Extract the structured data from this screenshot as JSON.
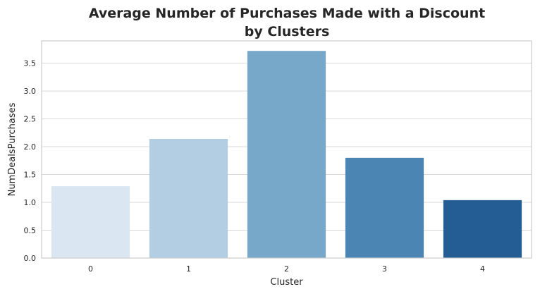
{
  "chart_data": {
    "type": "bar",
    "title_lines": [
      "Average Number of Purchases Made with a Discount",
      "by Clusters"
    ],
    "xlabel": "Cluster",
    "ylabel": "NumDealsPurchases",
    "categories": [
      "0",
      "1",
      "2",
      "3",
      "4"
    ],
    "values": [
      1.29,
      2.14,
      3.72,
      1.8,
      1.04
    ],
    "colors": [
      "#dae6f1",
      "#b3cde2",
      "#78a8c9",
      "#4a85b3",
      "#235d94"
    ],
    "ylim": [
      0,
      3.9
    ],
    "yticks": [
      0.0,
      0.5,
      1.0,
      1.5,
      2.0,
      2.5,
      3.0,
      3.5
    ],
    "ytick_labels": [
      "0.0",
      "0.5",
      "1.0",
      "1.5",
      "2.0",
      "2.5",
      "3.0",
      "3.5"
    ],
    "grid": "y",
    "legend": "none"
  }
}
